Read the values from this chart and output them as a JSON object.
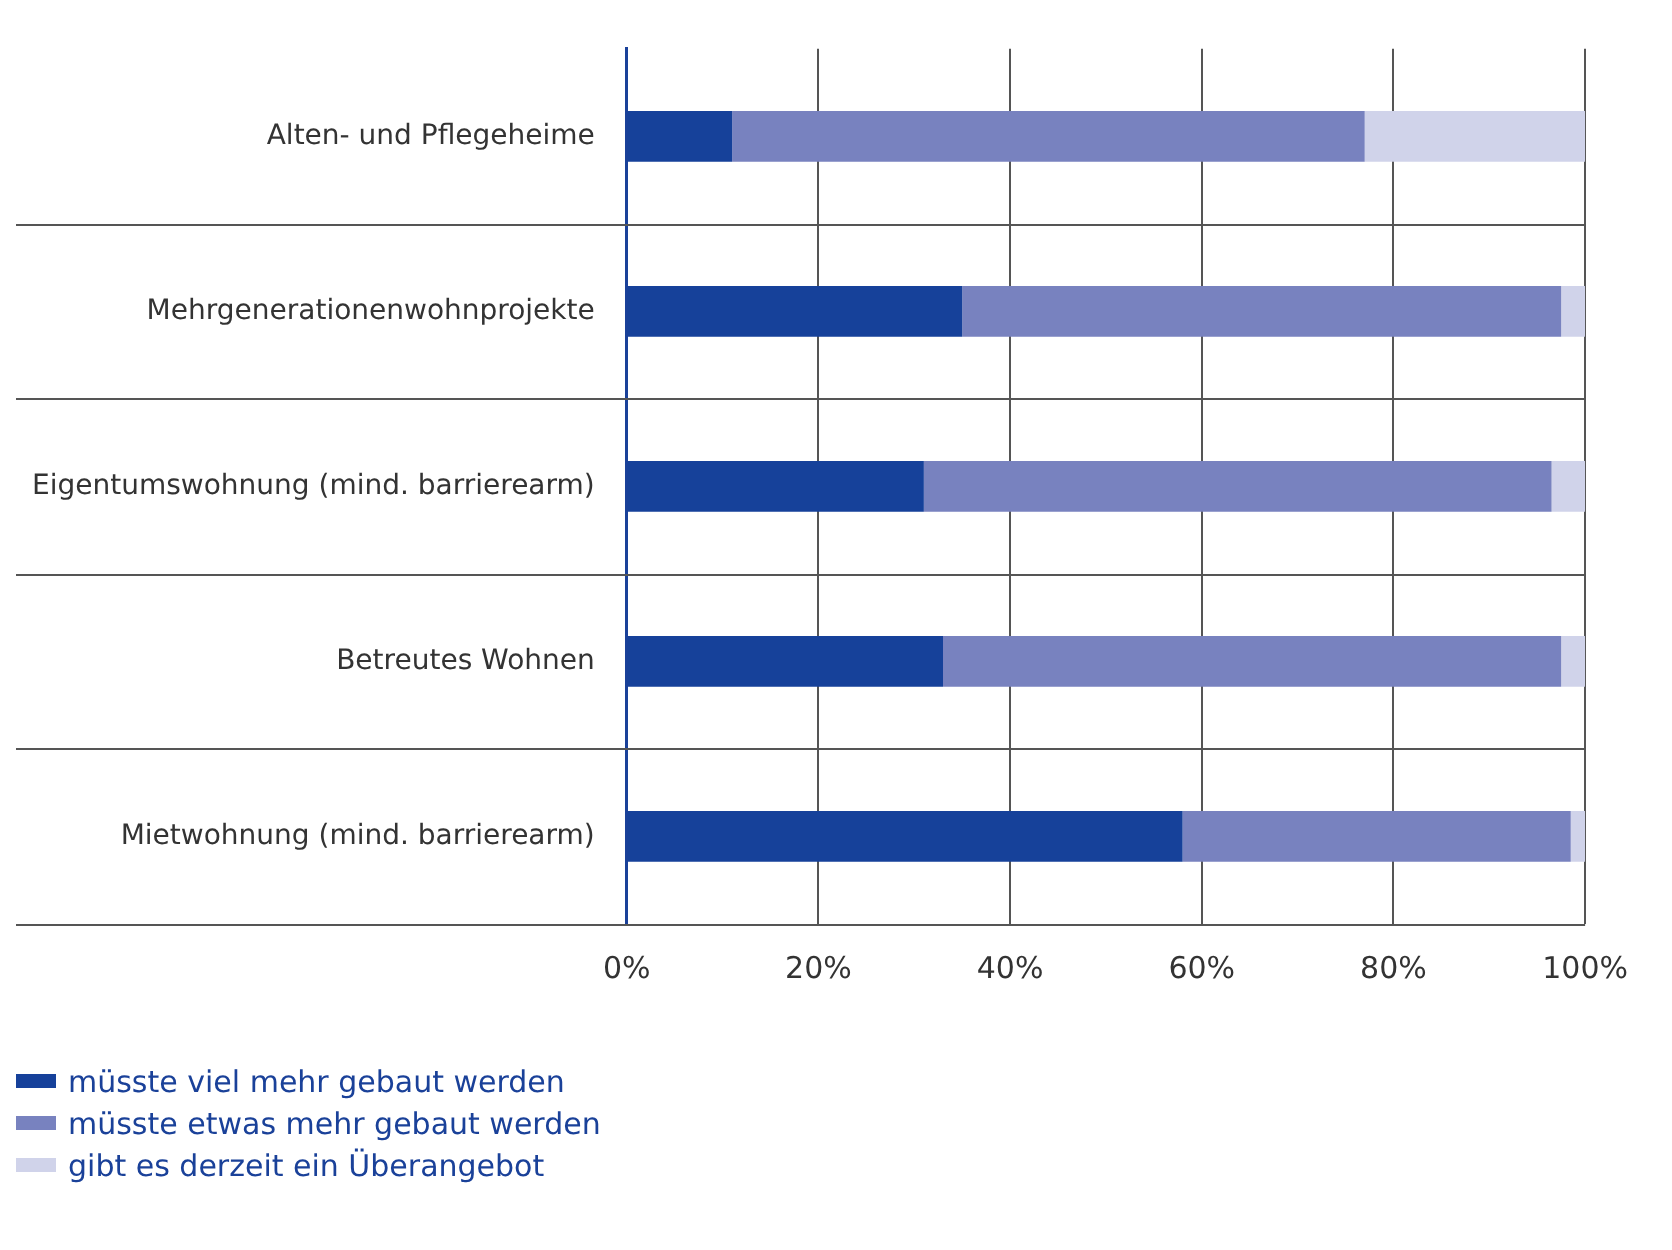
{
  "chart_data": {
    "type": "bar",
    "orientation": "horizontal",
    "stacked": true,
    "categories": [
      "Alten- und Pflegeheime",
      "Mehrgenerationenwohnprojekte",
      "Eigentumswohnung (mind. barrierearm)",
      "Betreutes Wohnen",
      "Mietwohnung (mind. barrierearm)"
    ],
    "series": [
      {
        "name": "müsste viel mehr gebaut werden",
        "color": "#16419a",
        "values": [
          11,
          35,
          31,
          33,
          58
        ]
      },
      {
        "name": "müsste etwas mehr gebaut werden",
        "color": "#7882bf",
        "values": [
          66,
          62.5,
          65.5,
          64.5,
          40.5
        ]
      },
      {
        "name": "gibt es derzeit ein Überangebot",
        "color": "#d0d3ea",
        "values": [
          23,
          2.5,
          3.5,
          2.5,
          1.5
        ]
      }
    ],
    "xlim": [
      0,
      100
    ],
    "xticks": [
      {
        "value": 0,
        "label": "0%"
      },
      {
        "value": 20,
        "label": "20%"
      },
      {
        "value": 40,
        "label": "40%"
      },
      {
        "value": 60,
        "label": "60%"
      },
      {
        "value": 80,
        "label": "80%"
      },
      {
        "value": 100,
        "label": "100%"
      }
    ],
    "grid": true,
    "legend": "bottom left"
  }
}
